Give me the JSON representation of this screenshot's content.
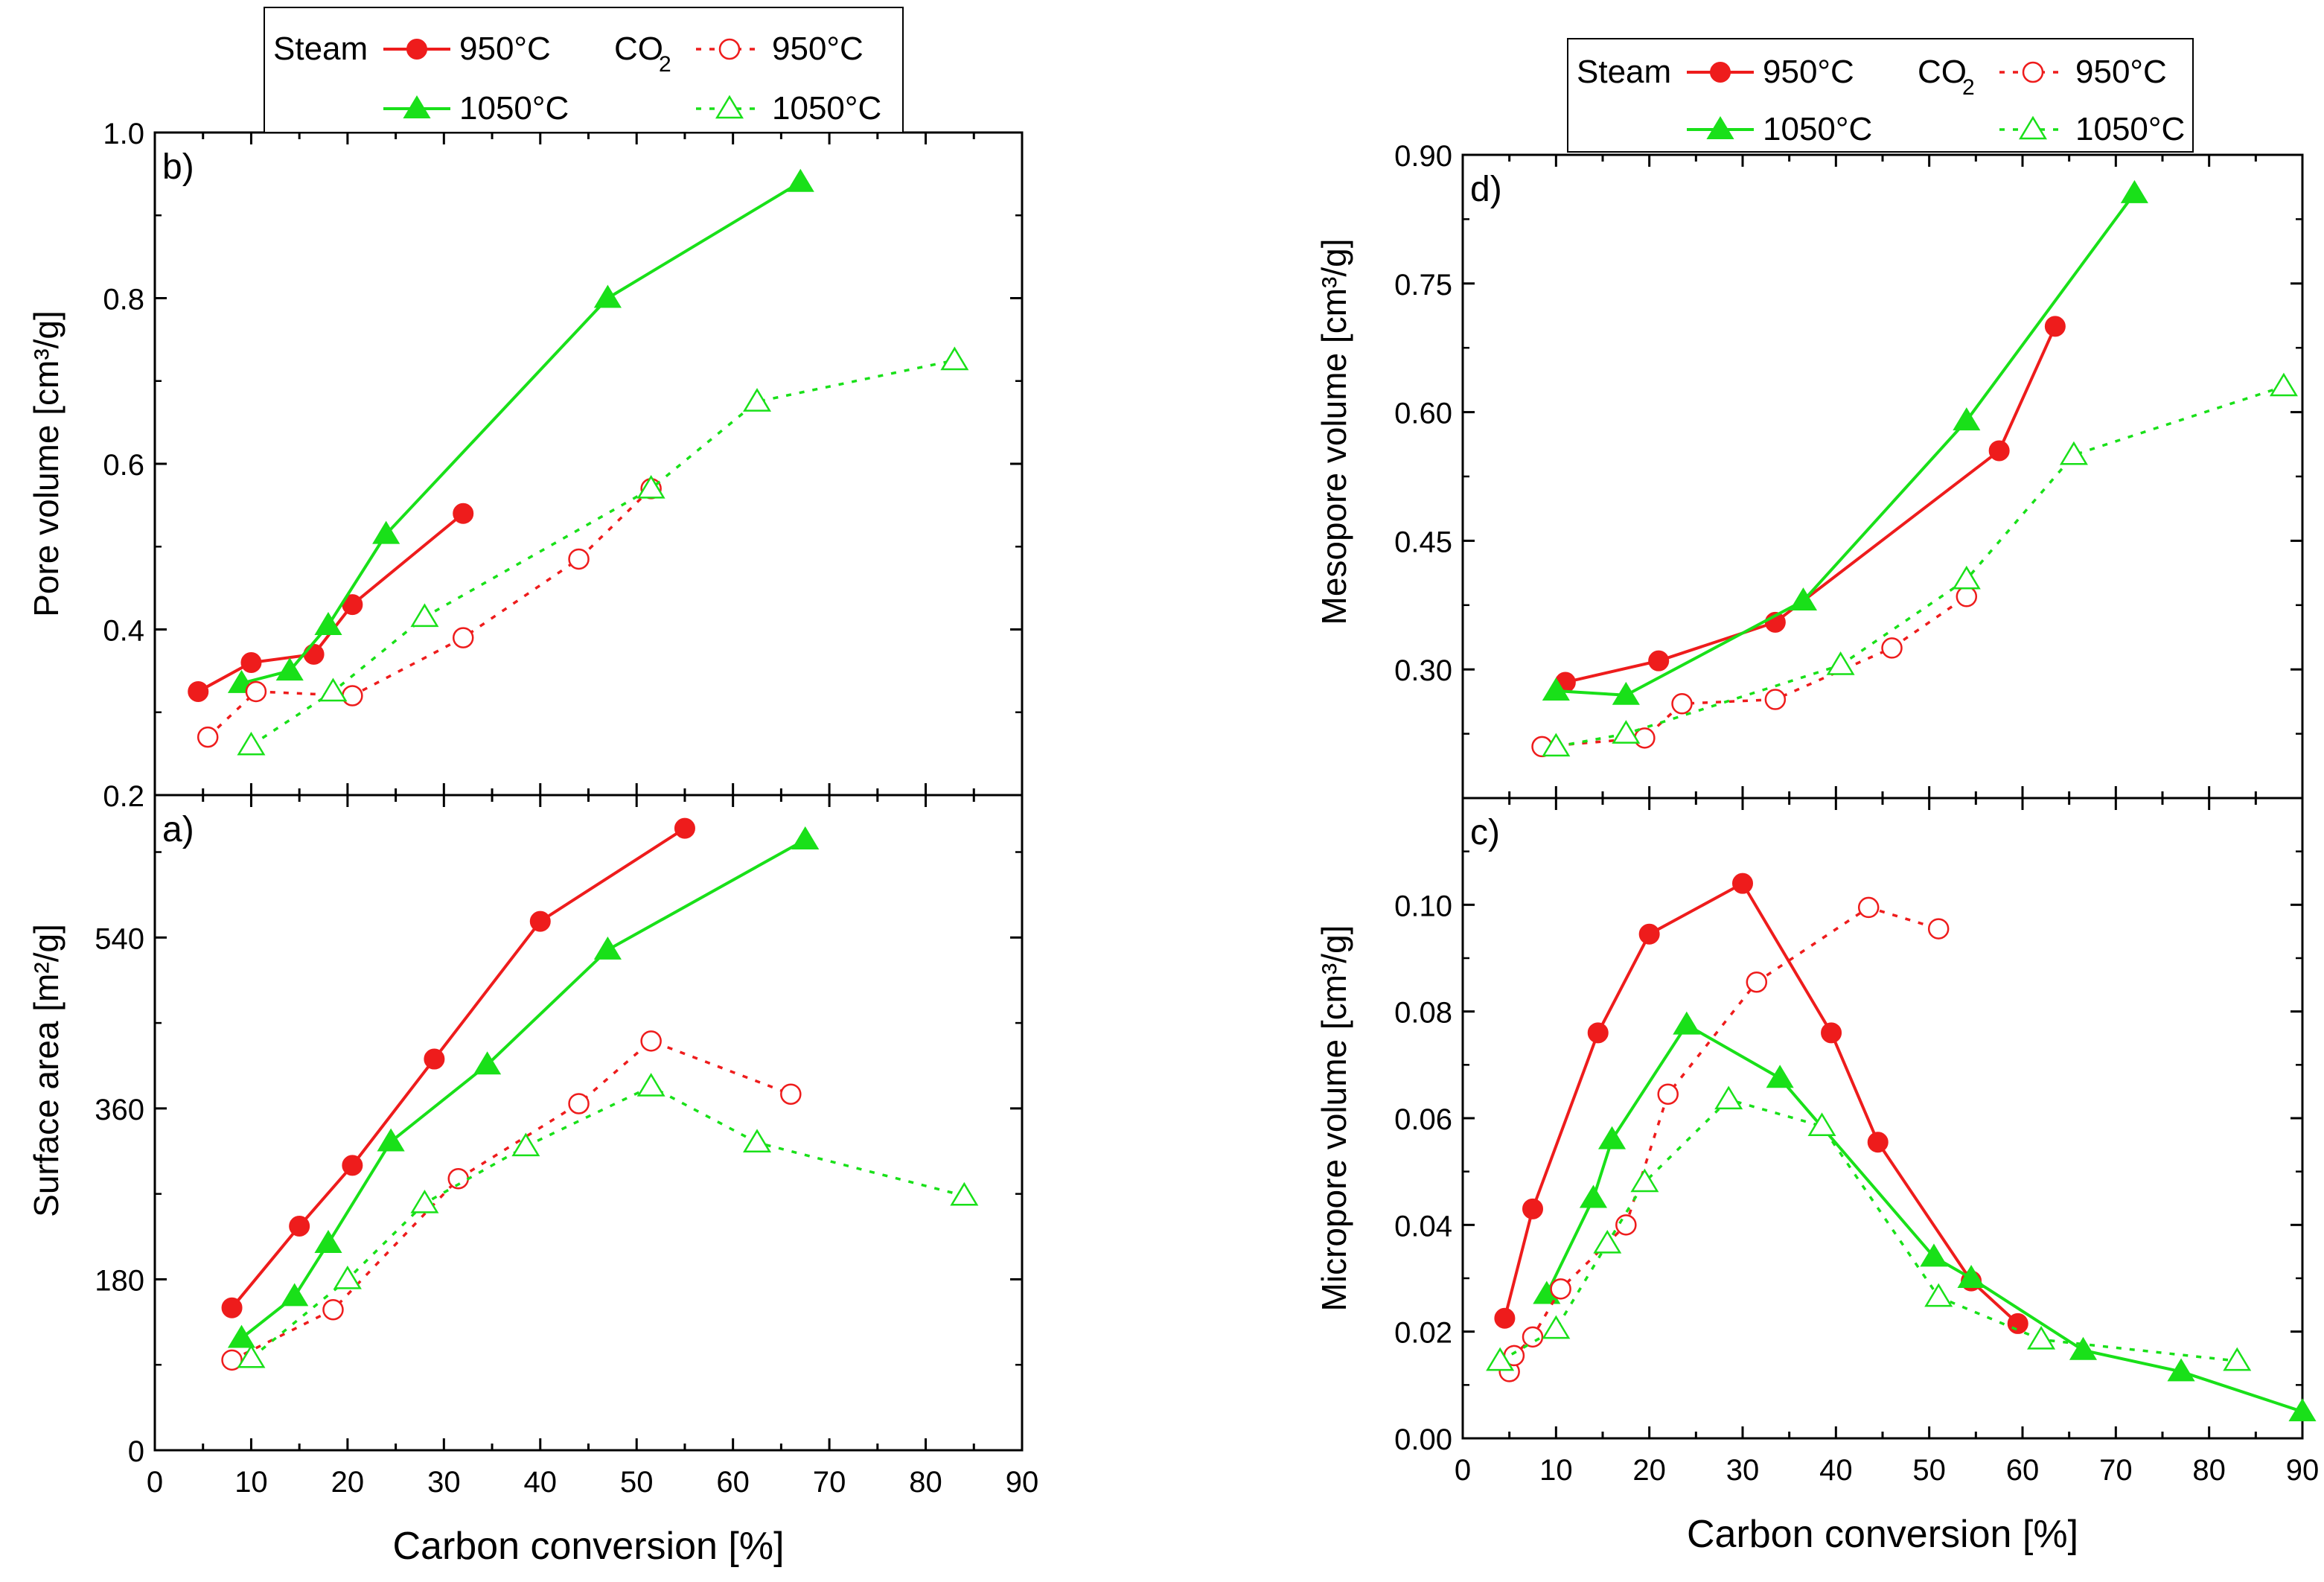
{
  "figure": {
    "colors": {
      "steam_950": "#ee1c1c",
      "steam_1050": "#19e019",
      "co2_950": "#ee1c1c",
      "co2_1050": "#19e019",
      "axis": "#000000"
    }
  },
  "legends": [
    {
      "steam_label": "Steam",
      "co2_label": "CO",
      "co2_subscript": "2",
      "entries": [
        {
          "series": "steam_950",
          "label": "950°C"
        },
        {
          "series": "co2_950",
          "label": "950°C"
        },
        {
          "series": "steam_1050",
          "label": "1050°C"
        },
        {
          "series": "co2_1050",
          "label": "1050°C"
        }
      ]
    },
    {
      "steam_label": "Steam",
      "co2_label": "CO",
      "co2_subscript": "2",
      "entries": [
        {
          "series": "steam_950",
          "label": "950°C"
        },
        {
          "series": "co2_950",
          "label": "950°C"
        },
        {
          "series": "steam_1050",
          "label": "1050°C"
        },
        {
          "series": "co2_1050",
          "label": "1050°C"
        }
      ]
    }
  ],
  "chart_data": [
    {
      "id": "b",
      "panel_label": "b)",
      "type": "line",
      "ylabel": "Pore volume [cm³/g]",
      "xlim": [
        0,
        90
      ],
      "ylim": [
        0.2,
        1.0
      ],
      "yticks": [
        "0.2",
        "0.4",
        "0.6",
        "0.8",
        "1.0"
      ],
      "series": [
        {
          "key": "steam_950",
          "x": [
            4.5,
            10,
            16.5,
            20.5,
            32
          ],
          "y": [
            0.325,
            0.36,
            0.37,
            0.43,
            0.54
          ]
        },
        {
          "key": "steam_1050",
          "x": [
            9,
            14,
            18,
            24,
            47,
            67
          ],
          "y": [
            0.335,
            0.35,
            0.405,
            0.515,
            0.8,
            0.94
          ]
        },
        {
          "key": "co2_950",
          "x": [
            5.5,
            10.5,
            20.5,
            32,
            44,
            51.5
          ],
          "y": [
            0.27,
            0.325,
            0.32,
            0.39,
            0.485,
            0.57
          ]
        },
        {
          "key": "co2_1050",
          "x": [
            10,
            18.5,
            28,
            51.5,
            62.5,
            83
          ],
          "y": [
            0.26,
            0.325,
            0.415,
            0.57,
            0.675,
            0.725
          ]
        }
      ]
    },
    {
      "id": "a",
      "panel_label": "a)",
      "type": "line",
      "xlabel": "Carbon conversion [%]",
      "ylabel": "Surface area [m²/g]",
      "xlim": [
        0,
        90
      ],
      "ylim": [
        0,
        690
      ],
      "yticks": [
        "0",
        "180",
        "360",
        "540"
      ],
      "xticks": [
        "0",
        "10",
        "20",
        "30",
        "40",
        "50",
        "60",
        "70",
        "80",
        "90"
      ],
      "series": [
        {
          "key": "steam_950",
          "x": [
            8,
            15,
            20.5,
            29,
            40,
            55
          ],
          "y": [
            150,
            236,
            300,
            412,
            557,
            655
          ]
        },
        {
          "key": "steam_1050",
          "x": [
            9,
            14.5,
            18,
            24.5,
            34.5,
            47,
            67.5
          ],
          "y": [
            118,
            162,
            218,
            325,
            406,
            527,
            643
          ]
        },
        {
          "key": "co2_950",
          "x": [
            8,
            18.5,
            31.5,
            44,
            51.5,
            66
          ],
          "y": [
            95,
            148,
            286,
            365,
            431,
            375
          ]
        },
        {
          "key": "co2_1050",
          "x": [
            10,
            20,
            28,
            38.5,
            51.5,
            62.5,
            84
          ],
          "y": [
            97,
            180,
            260,
            320,
            383,
            324,
            268
          ]
        }
      ]
    },
    {
      "id": "d",
      "panel_label": "d)",
      "type": "line",
      "ylabel": "Mesopore volume [cm³/g]",
      "xlim": [
        0,
        90
      ],
      "ylim": [
        0.15,
        0.9
      ],
      "yticks": [
        "0.30",
        "0.45",
        "0.60",
        "0.75",
        "0.90"
      ],
      "series": [
        {
          "key": "steam_950",
          "x": [
            11,
            21,
            33.5,
            57.5,
            63.5
          ],
          "y": [
            0.285,
            0.31,
            0.355,
            0.555,
            0.7
          ]
        },
        {
          "key": "steam_1050",
          "x": [
            10,
            17.5,
            36.5,
            54,
            72
          ],
          "y": [
            0.275,
            0.27,
            0.38,
            0.59,
            0.855
          ]
        },
        {
          "key": "co2_950",
          "x": [
            8.5,
            19.5,
            23.5,
            33.5,
            46,
            54
          ],
          "y": [
            0.21,
            0.22,
            0.26,
            0.265,
            0.325,
            0.385
          ]
        },
        {
          "key": "co2_1050",
          "x": [
            10,
            17.5,
            40.5,
            54,
            65.5,
            88
          ],
          "y": [
            0.21,
            0.225,
            0.305,
            0.405,
            0.55,
            0.63
          ]
        }
      ]
    },
    {
      "id": "c",
      "panel_label": "c)",
      "type": "line",
      "xlabel": "Carbon conversion [%]",
      "ylabel": "Micropore volume [cm³/g]",
      "xlim": [
        0,
        90
      ],
      "ylim": [
        0,
        0.12
      ],
      "yticks": [
        "0.00",
        "0.02",
        "0.04",
        "0.06",
        "0.08",
        "0.10"
      ],
      "xticks": [
        "0",
        "10",
        "20",
        "30",
        "40",
        "50",
        "60",
        "70",
        "80",
        "90"
      ],
      "series": [
        {
          "key": "steam_950",
          "x": [
            4.5,
            7.5,
            14.5,
            20,
            30,
            39.5,
            44.5,
            54.5,
            59.5
          ],
          "y": [
            0.0225,
            0.043,
            0.076,
            0.0945,
            0.104,
            0.076,
            0.0555,
            0.0295,
            0.0215
          ]
        },
        {
          "key": "steam_1050",
          "x": [
            9,
            14,
            16,
            24,
            34,
            50.5,
            54.5,
            66.5,
            77,
            90
          ],
          "y": [
            0.027,
            0.045,
            0.056,
            0.0775,
            0.0675,
            0.034,
            0.03,
            0.0165,
            0.0125,
            0.005
          ]
        },
        {
          "key": "co2_950",
          "x": [
            5,
            5.5,
            7.5,
            10.5,
            17.5,
            22,
            31.5,
            43.5,
            51
          ],
          "y": [
            0.0125,
            0.0155,
            0.019,
            0.028,
            0.04,
            0.0645,
            0.0855,
            0.0995,
            0.0955
          ]
        },
        {
          "key": "co2_1050",
          "x": [
            4,
            10,
            15.5,
            19.5,
            28.5,
            38.5,
            51,
            62,
            83
          ],
          "y": [
            0.0145,
            0.0205,
            0.0365,
            0.048,
            0.0635,
            0.0585,
            0.0265,
            0.0185,
            0.0145
          ]
        }
      ]
    }
  ]
}
